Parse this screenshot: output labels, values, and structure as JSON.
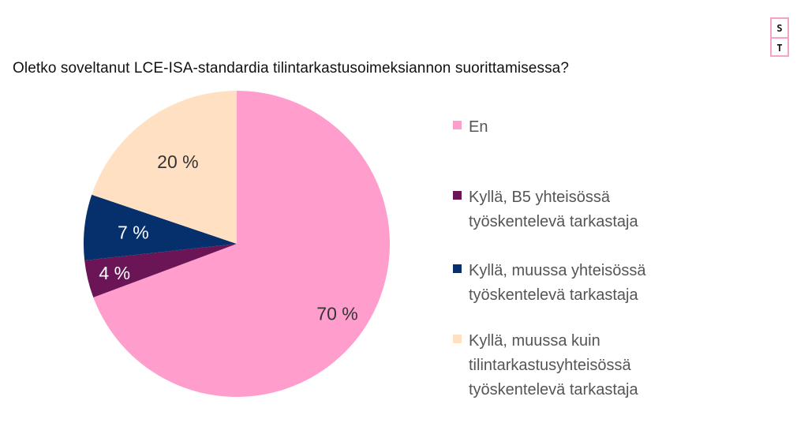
{
  "logo": {
    "top_letter": "S",
    "bottom_letter": "T"
  },
  "chart_data": {
    "type": "pie",
    "title": "Oletko soveltanut LCE-ISA-standardia tilintarkastusoimeksiannon suorittamisessa?",
    "legend_position": "right",
    "start_angle_deg": 0,
    "direction": "clockwise",
    "slices": [
      {
        "label": "En",
        "value": 70,
        "value_label": "70 %",
        "color": "#ff9dcc",
        "label_color": "#333333",
        "legend_lines": [
          "En"
        ]
      },
      {
        "label": "Kyllä, B5 yhteisössä työskentelevä tarkastaja",
        "value": 4,
        "value_label": "4 %",
        "color": "#6b1556",
        "label_color": "#ffffff",
        "legend_lines": [
          "Kyllä, B5 yhteisössä",
          "työskentelevä tarkastaja"
        ]
      },
      {
        "label": "Kyllä, muussa yhteisössä työskentelevä tarkastaja",
        "value": 7,
        "value_label": "7 %",
        "color": "#06306c",
        "label_color": "#ffffff",
        "legend_lines": [
          "Kyllä, muussa yhteisössä",
          "työskentelevä tarkastaja"
        ]
      },
      {
        "label": "Kyllä, muussa kuin tilintarkastusyhteisössä työskentelevä tarkastaja",
        "value": 20,
        "value_label": "20 %",
        "color": "#ffe0c2",
        "label_color": "#333333",
        "legend_lines": [
          "Kyllä, muussa kuin",
          "tilintarkastusyhteisössä",
          "työskentelevä tarkastaja"
        ]
      }
    ]
  }
}
